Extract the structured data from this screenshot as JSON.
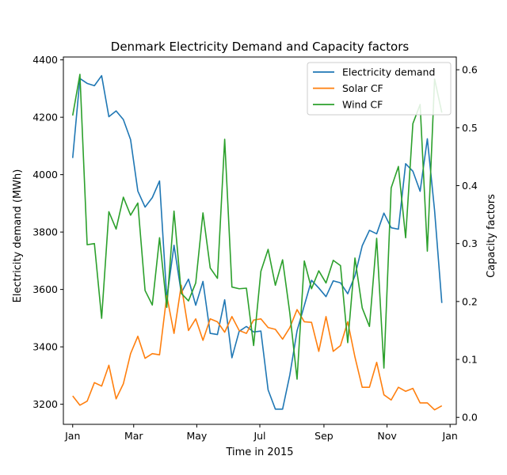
{
  "chart_data": {
    "type": "line",
    "title": "Denmark Electricity Demand and Capacity factors",
    "xlabel": "Time in 2015",
    "ylabel_left": "Electricity demand (MWh)",
    "ylabel_right": "Capacity factors",
    "x_ticks": [
      "Jan",
      "Mar",
      "May",
      "Jul",
      "Sep",
      "Nov",
      "Jan"
    ],
    "x_tick_dates": [
      "2015-01-01",
      "2015-03-01",
      "2015-05-01",
      "2015-07-01",
      "2015-09-01",
      "2015-11-01",
      "2016-01-01"
    ],
    "x_range": [
      "2014-12-23",
      "2016-01-07"
    ],
    "ylim_left": [
      3130,
      4410
    ],
    "ylim_right": [
      -0.012,
      0.622
    ],
    "yticks_left": [
      3200,
      3400,
      3600,
      3800,
      4000,
      4200,
      4400
    ],
    "yticks_right": [
      0.0,
      0.1,
      0.2,
      0.3,
      0.4,
      0.5,
      0.6
    ],
    "legend_position": "upper right",
    "grid": false,
    "x": [
      "2015-01-01",
      "2015-01-08",
      "2015-01-15",
      "2015-01-22",
      "2015-01-29",
      "2015-02-05",
      "2015-02-12",
      "2015-02-19",
      "2015-02-26",
      "2015-03-05",
      "2015-03-12",
      "2015-03-19",
      "2015-03-26",
      "2015-04-02",
      "2015-04-09",
      "2015-04-16",
      "2015-04-23",
      "2015-04-30",
      "2015-05-07",
      "2015-05-14",
      "2015-05-21",
      "2015-05-28",
      "2015-06-04",
      "2015-06-11",
      "2015-06-18",
      "2015-06-25",
      "2015-07-02",
      "2015-07-09",
      "2015-07-16",
      "2015-07-23",
      "2015-07-30",
      "2015-08-06",
      "2015-08-13",
      "2015-08-20",
      "2015-08-27",
      "2015-09-03",
      "2015-09-10",
      "2015-09-17",
      "2015-09-24",
      "2015-10-01",
      "2015-10-08",
      "2015-10-15",
      "2015-10-22",
      "2015-10-29",
      "2015-11-05",
      "2015-11-12",
      "2015-11-19",
      "2015-11-26",
      "2015-12-03",
      "2015-12-10",
      "2015-12-17",
      "2015-12-24"
    ],
    "series": [
      {
        "name": "Electricity demand",
        "axis": "left",
        "color": "#1f77b4",
        "values": [
          4058,
          4335,
          4318,
          4310,
          4345,
          4202,
          4222,
          4192,
          4122,
          3943,
          3887,
          3920,
          3978,
          3568,
          3754,
          3588,
          3636,
          3545,
          3628,
          3447,
          3443,
          3564,
          3362,
          3454,
          3471,
          3452,
          3455,
          3250,
          3183,
          3183,
          3302,
          3456,
          3544,
          3632,
          3605,
          3575,
          3630,
          3623,
          3585,
          3648,
          3752,
          3806,
          3794,
          3866,
          3815,
          3810,
          4038,
          4012,
          3942,
          4125,
          3875,
          3553
        ]
      },
      {
        "name": "Solar CF",
        "axis": "right",
        "color": "#ff7f0e",
        "values": [
          0.037,
          0.021,
          0.028,
          0.06,
          0.054,
          0.09,
          0.032,
          0.058,
          0.11,
          0.14,
          0.102,
          0.11,
          0.108,
          0.21,
          0.145,
          0.228,
          0.15,
          0.17,
          0.133,
          0.17,
          0.165,
          0.147,
          0.174,
          0.15,
          0.145,
          0.168,
          0.17,
          0.155,
          0.152,
          0.135,
          0.155,
          0.186,
          0.165,
          0.164,
          0.114,
          0.174,
          0.114,
          0.124,
          0.165,
          0.104,
          0.052,
          0.052,
          0.095,
          0.039,
          0.03,
          0.052,
          0.045,
          0.05,
          0.025,
          0.025,
          0.013,
          0.02
        ]
      },
      {
        "name": "Wind CF",
        "axis": "right",
        "color": "#2ca02c",
        "values": [
          0.521,
          0.592,
          0.298,
          0.3,
          0.171,
          0.355,
          0.325,
          0.38,
          0.349,
          0.37,
          0.219,
          0.194,
          0.31,
          0.19,
          0.356,
          0.214,
          0.201,
          0.232,
          0.353,
          0.258,
          0.24,
          0.48,
          0.225,
          0.222,
          0.223,
          0.124,
          0.252,
          0.29,
          0.228,
          0.272,
          0.18,
          0.066,
          0.27,
          0.222,
          0.253,
          0.232,
          0.271,
          0.262,
          0.129,
          0.275,
          0.189,
          0.157,
          0.309,
          0.085,
          0.396,
          0.433,
          0.31,
          0.507,
          0.54,
          0.287,
          0.584,
          0.526
        ]
      }
    ]
  }
}
